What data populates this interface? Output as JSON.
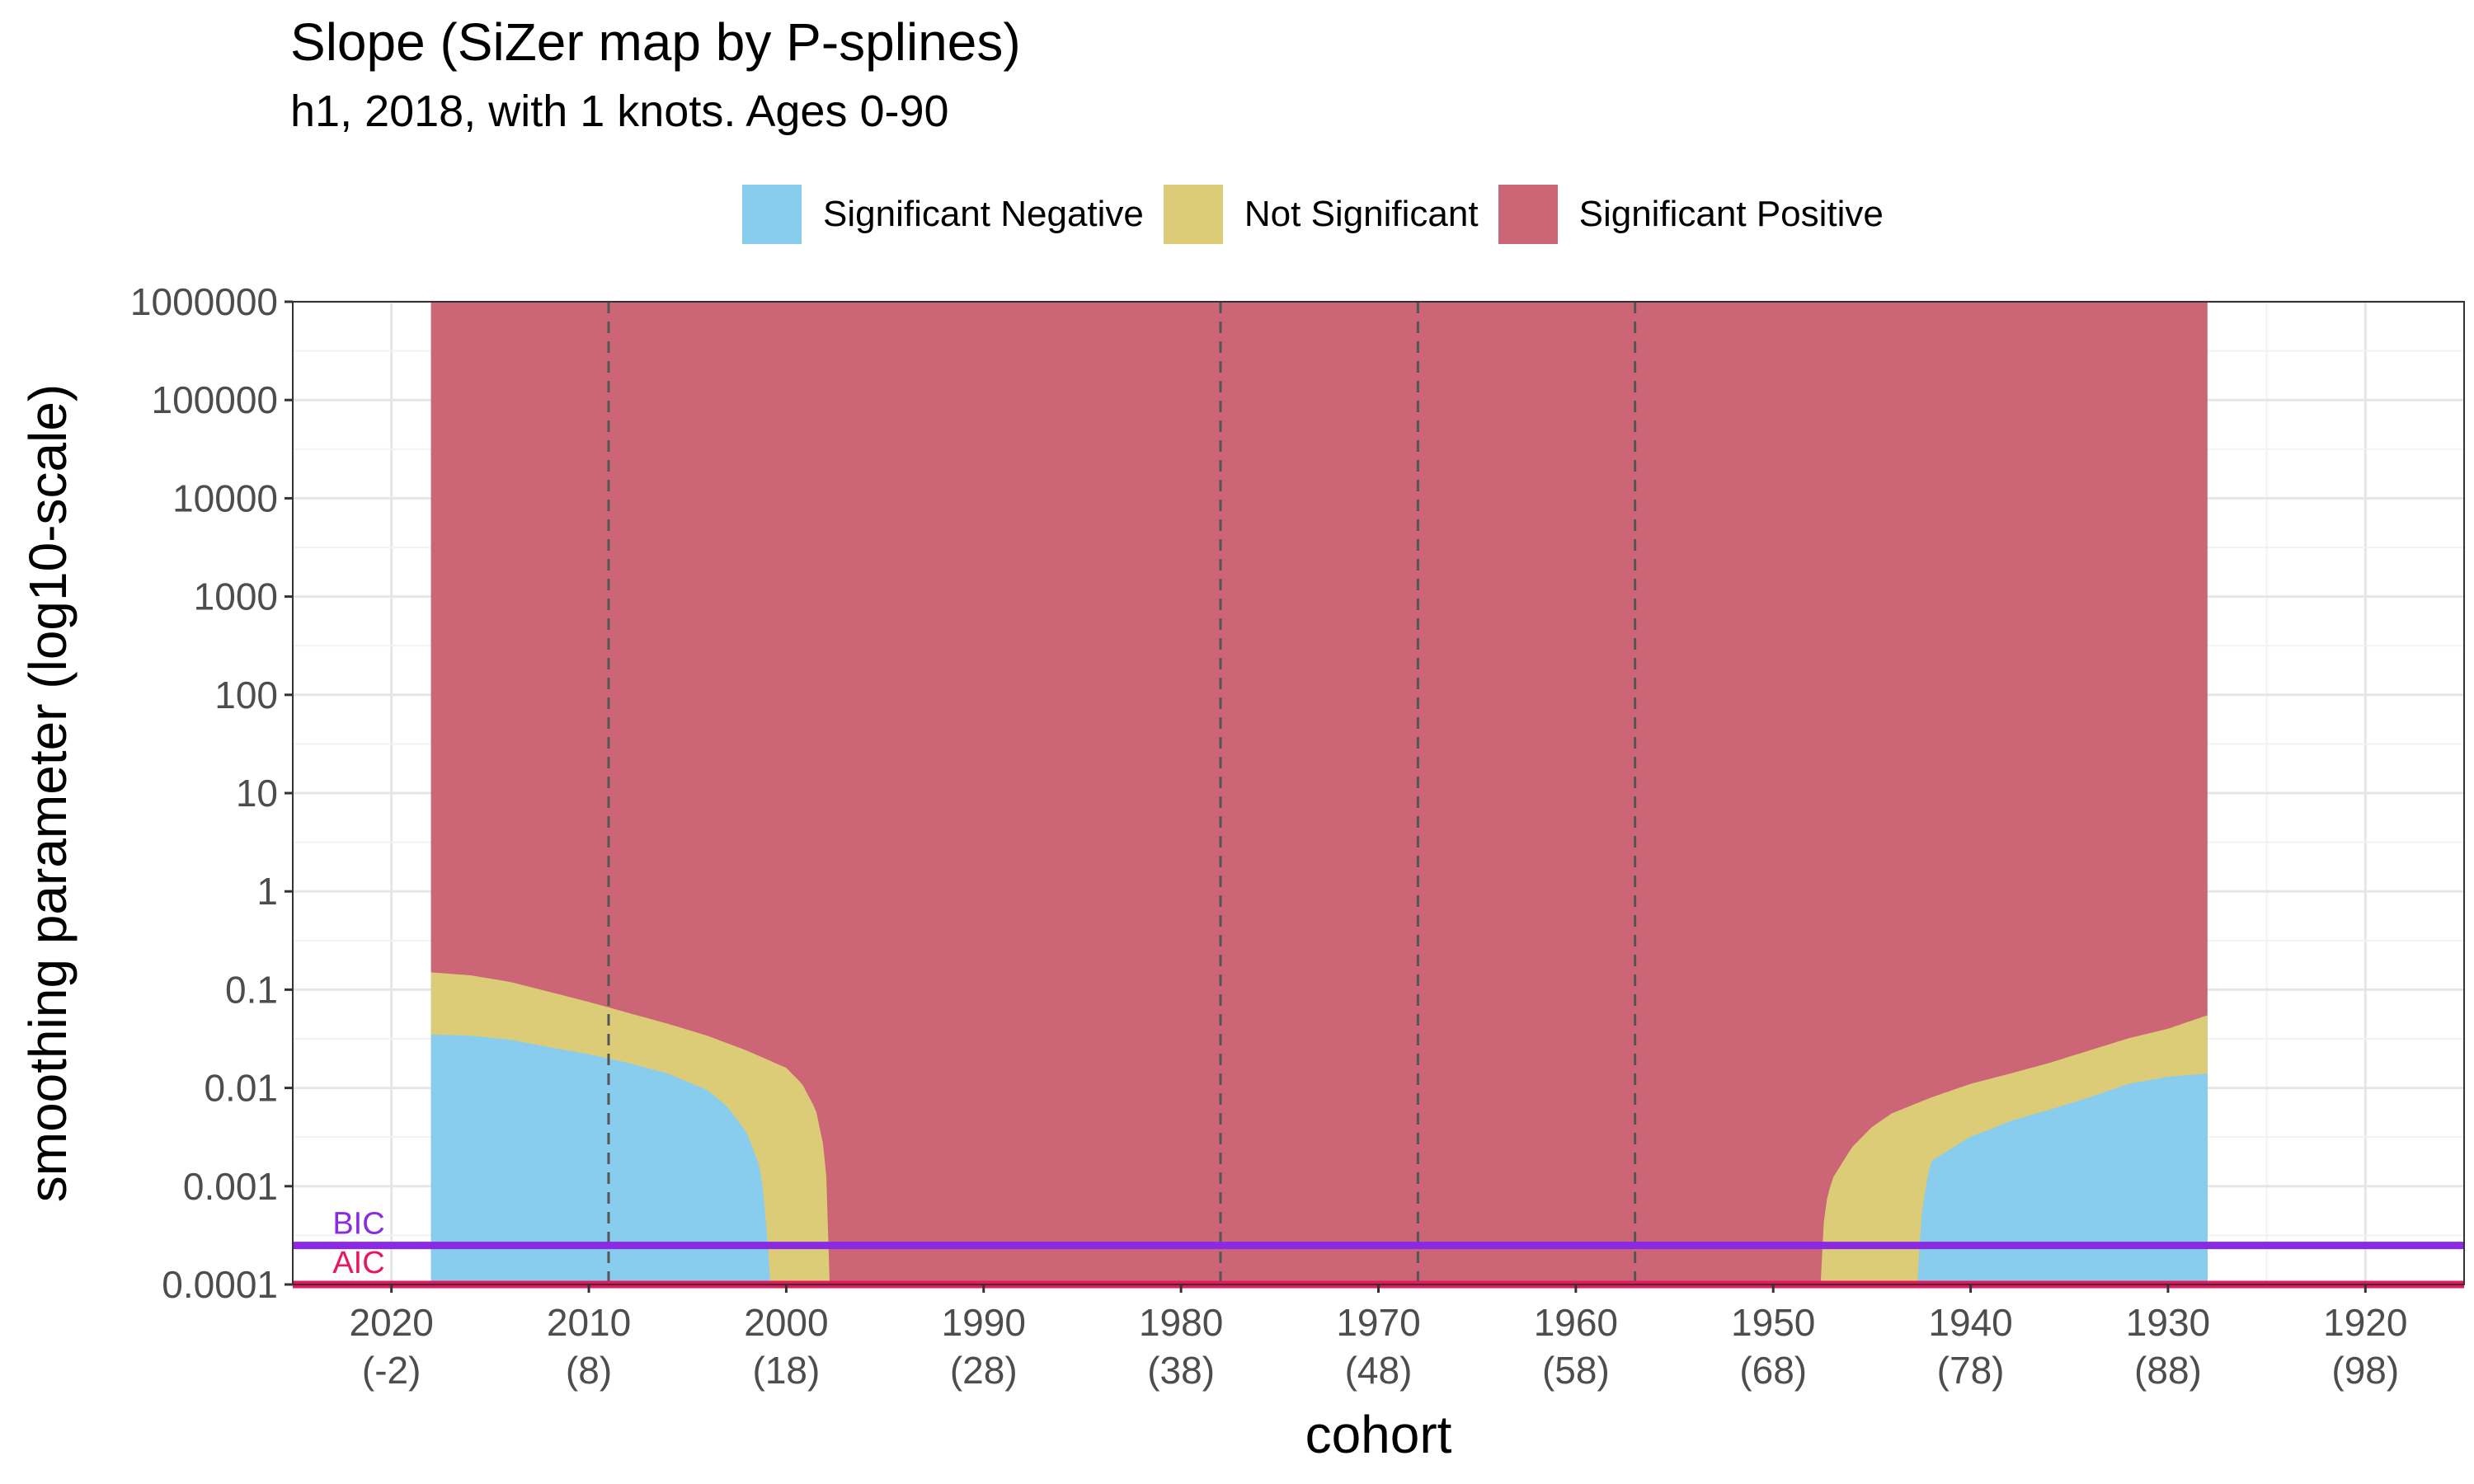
{
  "title": "Slope (SiZer map by P-splines)",
  "subtitle": "h1, 2018, with 1 knots. Ages 0-90",
  "legend": [
    {
      "label": "Significant Negative",
      "color": "#88CCEE"
    },
    {
      "label": "Not Significant",
      "color": "#DDCC77"
    },
    {
      "label": "Significant Positive",
      "color": "#CC6677"
    }
  ],
  "chart_data": {
    "type": "heatmap",
    "title": "Slope (SiZer map by P-splines)",
    "subtitle": "h1, 2018, with 1 knots. Ages 0-90",
    "xlabel": "cohort",
    "ylabel": "smoothing parameter (log10-scale)",
    "x_reversed": true,
    "y_scale": "log10",
    "xlim": [
      2025,
      1915
    ],
    "ylim": [
      0.0001,
      1000000
    ],
    "x_ticks": [
      {
        "value": 2020,
        "label": "2020",
        "sublabel": "(-2)"
      },
      {
        "value": 2010,
        "label": "2010",
        "sublabel": "(8)"
      },
      {
        "value": 2000,
        "label": "2000",
        "sublabel": "(18)"
      },
      {
        "value": 1990,
        "label": "1990",
        "sublabel": "(28)"
      },
      {
        "value": 1980,
        "label": "1980",
        "sublabel": "(38)"
      },
      {
        "value": 1970,
        "label": "1970",
        "sublabel": "(48)"
      },
      {
        "value": 1960,
        "label": "1960",
        "sublabel": "(58)"
      },
      {
        "value": 1950,
        "label": "1950",
        "sublabel": "(68)"
      },
      {
        "value": 1940,
        "label": "1940",
        "sublabel": "(78)"
      },
      {
        "value": 1930,
        "label": "1930",
        "sublabel": "(88)"
      },
      {
        "value": 1920,
        "label": "1920",
        "sublabel": "(98)"
      }
    ],
    "y_ticks": [
      {
        "value": 0.0001,
        "label": "0.0001"
      },
      {
        "value": 0.001,
        "label": "0.001"
      },
      {
        "value": 0.01,
        "label": "0.01"
      },
      {
        "value": 0.1,
        "label": "0.1"
      },
      {
        "value": 1,
        "label": "1"
      },
      {
        "value": 10,
        "label": "10"
      },
      {
        "value": 100,
        "label": "100"
      },
      {
        "value": 1000,
        "label": "1000"
      },
      {
        "value": 10000,
        "label": "10000"
      },
      {
        "value": 100000,
        "label": "100000"
      },
      {
        "value": 1000000,
        "label": "1000000"
      }
    ],
    "map_x_range": [
      2018,
      1928
    ],
    "map_y_range": [
      0.0001,
      1000000
    ],
    "categories": [
      "Significant Negative",
      "Not Significant",
      "Significant Positive"
    ],
    "boundaries": {
      "left_region": {
        "neg_upper": [
          [
            2018,
            0.035
          ],
          [
            2016,
            0.034
          ],
          [
            2014,
            0.031
          ],
          [
            2012,
            0.026
          ],
          [
            2010,
            0.022
          ],
          [
            2008,
            0.018
          ],
          [
            2006,
            0.014
          ],
          [
            2004,
            0.0095
          ],
          [
            2003,
            0.0065
          ],
          [
            2002,
            0.0035
          ],
          [
            2001.3,
            0.0015
          ],
          [
            2001,
            0.0004
          ],
          [
            2000.8,
            0.0001
          ]
        ],
        "ns_upper": [
          [
            2018,
            0.15
          ],
          [
            2016,
            0.14
          ],
          [
            2014,
            0.12
          ],
          [
            2012,
            0.095
          ],
          [
            2010,
            0.075
          ],
          [
            2008,
            0.058
          ],
          [
            2006,
            0.045
          ],
          [
            2004,
            0.034
          ],
          [
            2002,
            0.024
          ],
          [
            2000,
            0.016
          ],
          [
            1999.2,
            0.011
          ],
          [
            1998.5,
            0.006
          ],
          [
            1998,
            0.002
          ],
          [
            1997.8,
            0.0001
          ]
        ]
      },
      "right_region": {
        "ns_lower": [
          [
            1947.6,
            0.0001
          ],
          [
            1947.4,
            0.0006
          ],
          [
            1947,
            0.0012
          ],
          [
            1946,
            0.0025
          ],
          [
            1945,
            0.004
          ],
          [
            1944,
            0.0055
          ],
          [
            1942,
            0.008
          ],
          [
            1940,
            0.011
          ],
          [
            1938,
            0.014
          ],
          [
            1936,
            0.018
          ],
          [
            1934,
            0.024
          ],
          [
            1932,
            0.032
          ],
          [
            1930,
            0.04
          ],
          [
            1928,
            0.055
          ]
        ],
        "neg_lower": [
          [
            1942.7,
            0.0001
          ],
          [
            1942.5,
            0.0005
          ],
          [
            1942.2,
            0.0012
          ],
          [
            1942,
            0.0018
          ],
          [
            1941,
            0.0024
          ],
          [
            1940,
            0.0032
          ],
          [
            1939,
            0.0038
          ],
          [
            1938,
            0.0046
          ],
          [
            1936,
            0.006
          ],
          [
            1934,
            0.008
          ],
          [
            1932,
            0.011
          ],
          [
            1930,
            0.013
          ],
          [
            1928,
            0.014
          ]
        ]
      }
    },
    "reference_lines": {
      "vertical_dashed_x": [
        2009,
        1978,
        1968,
        1957
      ],
      "horizontal": [
        {
          "name": "BIC",
          "y": 0.00025,
          "color": "#8A2BE2"
        },
        {
          "name": "AIC",
          "y": 0.0001,
          "color": "#E8175D"
        }
      ]
    },
    "grid": true,
    "legend_position": "top"
  }
}
